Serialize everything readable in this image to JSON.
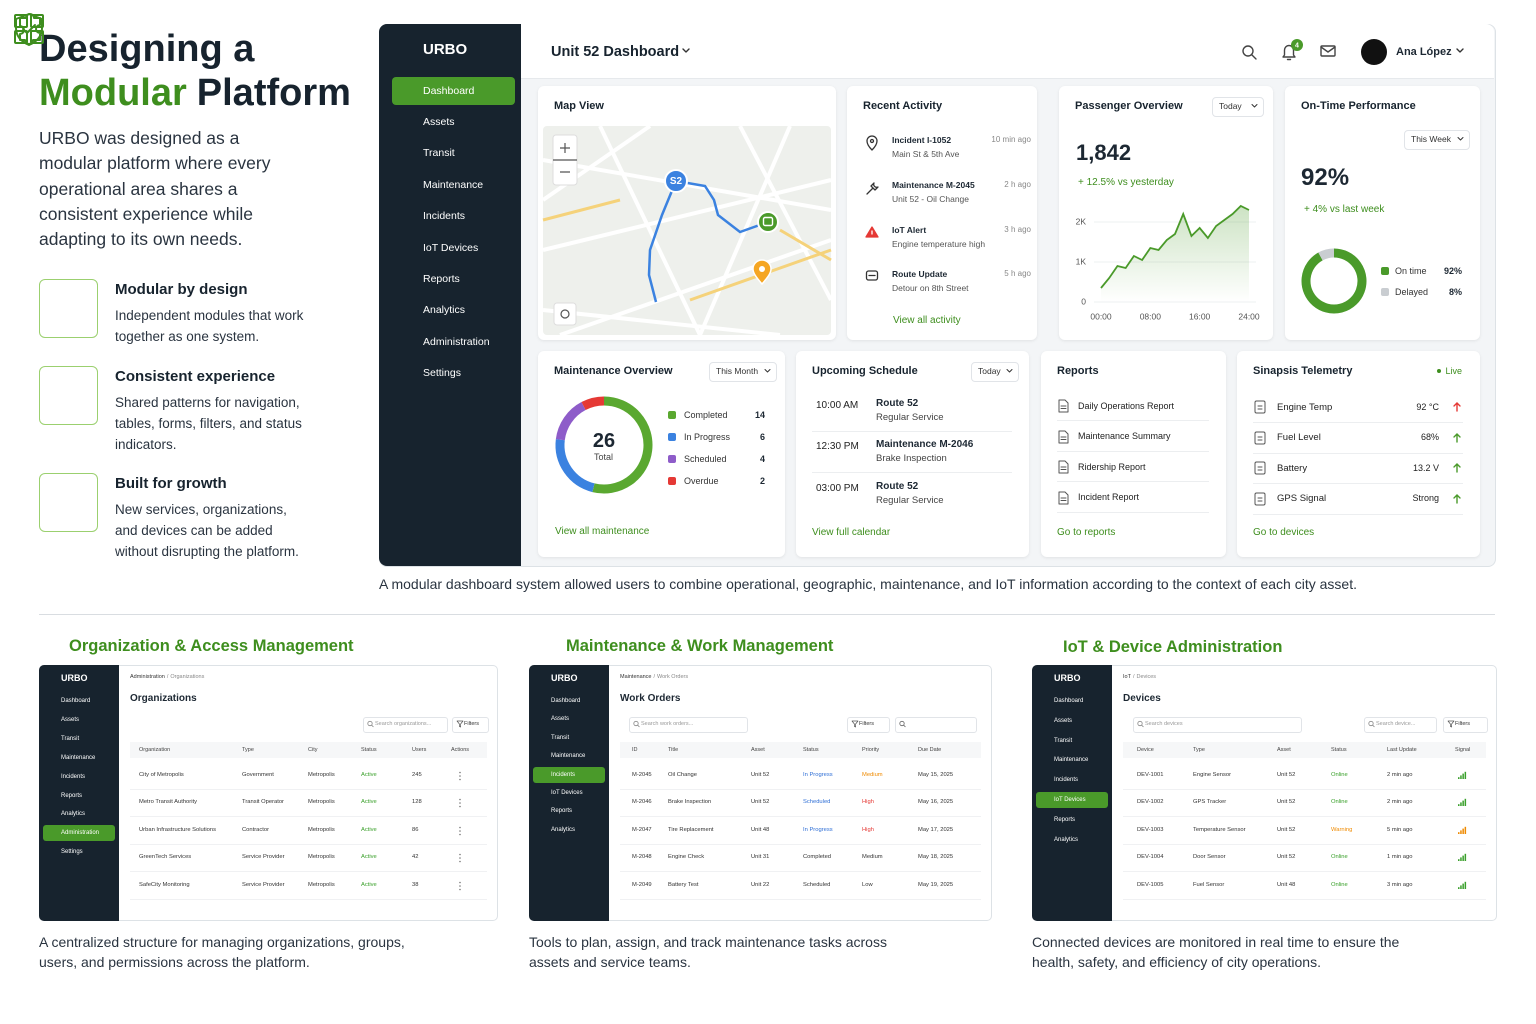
{
  "intro": {
    "title": "Designing a",
    "title_accent": "Modular",
    "title_rest": "Platform",
    "description": "URBO was designed as a modular platform where every operational area shares a consistent experience while adapting to its own needs.",
    "features": [
      {
        "title": "Modular by design",
        "text": "Independent modules that work together as one system."
      },
      {
        "title": "Consistent experience",
        "text": "Shared patterns for navigation, tables, forms, filters, and status indicators."
      },
      {
        "title": "Built for growth",
        "text": "New services, organizations, and devices can be added without disrupting the platform."
      }
    ]
  },
  "dashboard": {
    "brand": "URBO",
    "nav": [
      "Dashboard",
      "Assets",
      "Transit",
      "Maintenance",
      "Incidents",
      "IoT Devices",
      "Reports",
      "Analytics",
      "Administration",
      "Settings"
    ],
    "active": 0,
    "header_title": "Unit 52 Dashboard",
    "notifications": "4",
    "user": "Ana López",
    "map": {
      "title": "Map View",
      "marker": "S2"
    },
    "activity": {
      "title": "Recent Activity",
      "items": [
        {
          "title": "Incident I-1052",
          "detail": "Main St & 5th Ave",
          "time": "10 min ago"
        },
        {
          "title": "Maintenance M-2045",
          "detail": "Unit 52 - Oil Change",
          "time": "2 h ago"
        },
        {
          "title": "IoT Alert",
          "detail": "Engine temperature high",
          "time": "3 h ago"
        },
        {
          "title": "Route Update",
          "detail": "Detour on 8th Street",
          "time": "5 h ago"
        }
      ],
      "link": "View all activity"
    },
    "passengers": {
      "title": "Passenger Overview",
      "filter": "Today",
      "total": "1,842",
      "change": "+ 12.5% vs yesterday",
      "color": "#4a9a2a",
      "x_labels": [
        "00:00",
        "08:00",
        "16:00",
        "24:00"
      ],
      "values": [
        350,
        600,
        900,
        850,
        1150,
        1050,
        1350,
        1300,
        1550,
        1700,
        2200,
        1650,
        1850,
        1600,
        1900,
        2050,
        2200,
        2400,
        2300
      ],
      "ylim": [
        0,
        2500
      ],
      "yticks": [
        0,
        {
          "value": 1000,
          "label": "1K"
        },
        {
          "value": 2000,
          "label": "2K"
        }
      ]
    },
    "on_time": {
      "title": "On-Time Performance",
      "filter": "This Week",
      "rate": "92%",
      "change": "+ 4% vs last week",
      "segments": [
        {
          "name": "On time",
          "value": 92,
          "value_label": "92%",
          "color": "#4a9a2a"
        },
        {
          "name": "Delayed",
          "value": 8,
          "value_label": "8%",
          "color": "#c9cdd1"
        }
      ]
    },
    "maintenance": {
      "title": "Maintenance Overview",
      "filter": "This Month",
      "total": 26,
      "total_label": "Total",
      "segments": [
        {
          "name": "Completed",
          "value": 14,
          "color": "#5aa830"
        },
        {
          "name": "In Progress",
          "value": 6,
          "color": "#3b82e0"
        },
        {
          "name": "Scheduled",
          "value": 4,
          "color": "#8e5cc9"
        },
        {
          "name": "Overdue",
          "value": 2,
          "color": "#e53935"
        }
      ],
      "link": "View all maintenance"
    },
    "schedule": {
      "title": "Upcoming Schedule",
      "filter": "Today",
      "items": [
        {
          "time": "10:00 AM",
          "title": "Route 52",
          "detail": "Regular Service"
        },
        {
          "time": "12:30 PM",
          "title": "Maintenance M-2046",
          "detail": "Brake Inspection"
        },
        {
          "time": "03:00 PM",
          "title": "Route 52",
          "detail": "Regular Service"
        }
      ],
      "link": "View full calendar"
    },
    "reports": {
      "title": "Reports",
      "items": [
        "Daily Operations Report",
        "Maintenance Summary",
        "Ridership Report",
        "Incident Report"
      ],
      "link": "Go to reports"
    },
    "telemetry": {
      "title": "Sinapsis Telemetry",
      "status": "Live",
      "items": [
        {
          "name": "Engine Temp",
          "value": "92 °C",
          "arrow_color": "#e53935"
        },
        {
          "name": "Fuel Level",
          "value": "68%",
          "arrow_color": "#4a9a2a"
        },
        {
          "name": "Battery",
          "value": "13.2 V",
          "arrow_color": "#4a9a2a"
        },
        {
          "name": "GPS Signal",
          "value": "Strong",
          "arrow_color": "#4a9a2a"
        }
      ],
      "link": "Go to devices"
    },
    "caption": "A modular dashboard system allowed users to combine operational, geographic, maintenance, and IoT information according to the context of each city asset."
  },
  "sections": [
    {
      "heading": "Organization & Access Management",
      "screen": {
        "brand": "URBO",
        "nav": [
          "Dashboard",
          "Assets",
          "Transit",
          "Maintenance",
          "Incidents",
          "Reports",
          "Analytics",
          "Administration",
          "Settings"
        ],
        "active": 7,
        "breadcrumb_parent": "Administration",
        "breadcrumb_current": "Organizations",
        "title": "Organizations",
        "searches": [
          "Search organizations..."
        ],
        "filter": "Filters",
        "columns": [
          "Organization",
          "Type",
          "City",
          "Status",
          "Users",
          "Actions"
        ],
        "rows": [
          {
            "cells": [
              "City of Metropolis",
              "Government",
              "Metropolis",
              "Active",
              245
            ],
            "colors": {
              "3": "#3aa02b"
            }
          },
          {
            "cells": [
              "Metro Transit Authority",
              "Transit Operator",
              "Metropolis",
              "Active",
              128
            ],
            "colors": {
              "3": "#3aa02b"
            }
          },
          {
            "cells": [
              "Urban Infrastructure Solutions",
              "Contractor",
              "Metropolis",
              "Active",
              86
            ],
            "colors": {
              "3": "#3aa02b"
            }
          },
          {
            "cells": [
              "GreenTech Services",
              "Service Provider",
              "Metropolis",
              "Active",
              42
            ],
            "colors": {
              "3": "#3aa02b"
            }
          },
          {
            "cells": [
              "SafeCity Monitoring",
              "Service Provider",
              "Metropolis",
              "Active",
              38
            ],
            "colors": {
              "3": "#3aa02b"
            }
          }
        ]
      },
      "caption": "A centralized structure for managing organizations, groups, users, and permissions across the platform."
    },
    {
      "heading": "Maintenance & Work Management",
      "screen": {
        "brand": "URBO",
        "nav": [
          "Dashboard",
          "Assets",
          "Transit",
          "Maintenance",
          "Incidents",
          "IoT Devices",
          "Reports",
          "Analytics"
        ],
        "active": 4,
        "breadcrumb_parent": "Maintenance",
        "breadcrumb_current": "Work Orders",
        "title": "Work Orders",
        "searches": [
          "Search work orders..."
        ],
        "filter": "Filters",
        "columns": [
          "ID",
          "Title",
          "Asset",
          "Status",
          "Priority",
          "Due Date"
        ],
        "rows": [
          {
            "cells": [
              "M-2045",
              "Oil Change",
              "Unit 52",
              "In Progress",
              "Medium",
              "May 15, 2025"
            ],
            "colors": {
              "3": "#2f6fd6",
              "4": "#ef8a00"
            }
          },
          {
            "cells": [
              "M-2046",
              "Brake Inspection",
              "Unit 52",
              "Scheduled",
              "High",
              "May 16, 2025"
            ],
            "colors": {
              "3": "#2f6fd6",
              "4": "#e53935"
            }
          },
          {
            "cells": [
              "M-2047",
              "Tire Replacement",
              "Unit 48",
              "In Progress",
              "High",
              "May 17, 2025"
            ],
            "colors": {
              "3": "#2f6fd6",
              "4": "#e53935"
            }
          },
          {
            "cells": [
              "M-2048",
              "Engine Check",
              "Unit 31",
              "Completed",
              "Medium",
              "May 18, 2025"
            ],
            "colors": {}
          },
          {
            "cells": [
              "M-2049",
              "Battery Test",
              "Unit 22",
              "Scheduled",
              "Low",
              "May 19, 2025"
            ],
            "colors": {}
          }
        ]
      },
      "caption": "Tools to plan, assign, and track maintenance tasks across assets and service teams."
    },
    {
      "heading": "IoT & Device Administration",
      "screen": {
        "brand": "URBO",
        "nav": [
          "Dashboard",
          "Assets",
          "Transit",
          "Maintenance",
          "Incidents",
          "IoT Devices",
          "Reports",
          "Analytics"
        ],
        "active": 5,
        "breadcrumb_parent": "IoT",
        "breadcrumb_current": "Devices",
        "title": "Devices",
        "searches": [
          "Search devices",
          "Search device..."
        ],
        "filter": "Filters",
        "columns": [
          "Device",
          "Type",
          "Asset",
          "Status",
          "Last Update",
          "Signal"
        ],
        "rows": [
          {
            "cells": [
              "DEV-1001",
              "Engine Sensor",
              "Unit 52",
              "Online",
              "2 min ago"
            ],
            "colors": {
              "3": "#3aa02b"
            }
          },
          {
            "cells": [
              "DEV-1002",
              "GPS Tracker",
              "Unit 52",
              "Online",
              "2 min ago"
            ],
            "colors": {
              "3": "#3aa02b"
            }
          },
          {
            "cells": [
              "DEV-1003",
              "Temperature Sensor",
              "Unit 52",
              "Warning",
              "5 min ago"
            ],
            "colors": {
              "3": "#ef8a00"
            }
          },
          {
            "cells": [
              "DEV-1004",
              "Door Sensor",
              "Unit 52",
              "Online",
              "1 min ago"
            ],
            "colors": {
              "3": "#3aa02b"
            }
          },
          {
            "cells": [
              "DEV-1005",
              "Fuel Sensor",
              "Unit 48",
              "Online",
              "3 min ago"
            ],
            "colors": {
              "3": "#3aa02b"
            }
          }
        ]
      },
      "caption": "Connected devices are monitored in real time to ensure the health, safety, and efficiency of city operations."
    }
  ]
}
